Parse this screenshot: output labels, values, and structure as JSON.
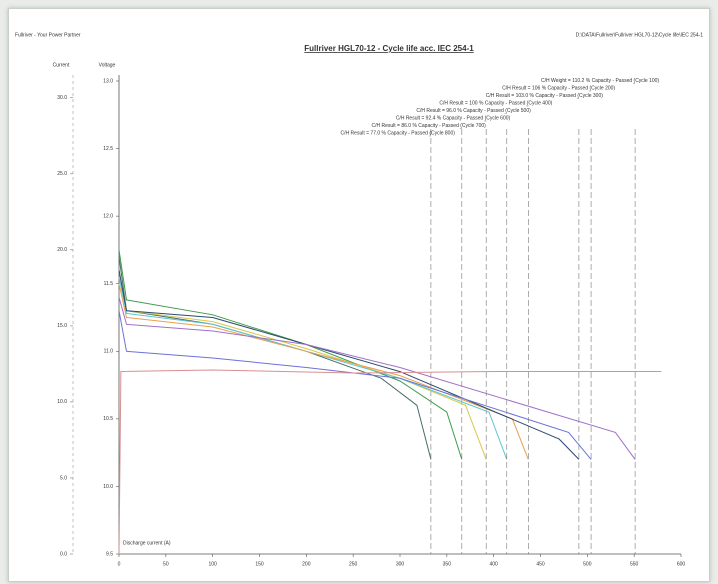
{
  "header": {
    "left": "Fullriver - Your Power Partner",
    "right": "D:\\DATA\\Fullriver\\Fullriver HGL70-12\\Cycle life\\IEC 254-1"
  },
  "chart_data": {
    "type": "line",
    "title": "Fullriver HGL70-12 - Cycle life acc. IEC 254-1",
    "ylabel": "Voltage",
    "y2label": "Current",
    "current_label": "Discharge current (A)",
    "xlim": [
      0,
      600
    ],
    "xticks": [
      0,
      50,
      100,
      150,
      200,
      250,
      300,
      350,
      400,
      450,
      500,
      550,
      600
    ],
    "ylim": [
      9.5,
      13.0
    ],
    "yticks": [
      {
        "value": 9.5,
        "label": "9.5"
      },
      {
        "value": 10.0,
        "label": "10.0"
      },
      {
        "value": 10.5,
        "label": "10.5"
      },
      {
        "value": 11.0,
        "label": "11.0"
      },
      {
        "value": 11.5,
        "label": "11.5"
      },
      {
        "value": 12.0,
        "label": "12.0"
      },
      {
        "value": 12.5,
        "label": "12.5"
      },
      {
        "value": 13.0,
        "label": "13.0"
      }
    ],
    "y2lim": [
      0,
      31.1
    ],
    "y2ticks": [
      {
        "value": 0,
        "label": "0.0"
      },
      {
        "value": 5,
        "label": "5.0"
      },
      {
        "value": 10,
        "label": "10.0"
      },
      {
        "value": 15,
        "label": "15.0"
      },
      {
        "value": 20,
        "label": "20.0"
      },
      {
        "value": 25,
        "label": "25.0"
      },
      {
        "value": 30,
        "label": "30.0"
      }
    ],
    "series": [
      {
        "name": "C/H Result = 77.0 % Capacity - Passed (Cycle 800)",
        "color": "#4a6a6a",
        "x": [
          0,
          8,
          100,
          200,
          280,
          318,
          333
        ],
        "values": [
          11.7,
          11.3,
          11.2,
          11.0,
          10.8,
          10.6,
          10.2
        ]
      },
      {
        "name": "C/H Result = 86.0 % Capacity - Passed (Cycle 700)",
        "color": "#3f9a4a",
        "x": [
          0,
          8,
          100,
          200,
          300,
          350,
          366
        ],
        "values": [
          11.75,
          11.38,
          11.27,
          11.05,
          10.78,
          10.55,
          10.2
        ]
      },
      {
        "name": "C/H Result = 92.4 % Capacity - Passed (Cycle 600)",
        "color": "#d8c84a",
        "x": [
          0,
          8,
          100,
          200,
          300,
          370,
          392
        ],
        "values": [
          11.6,
          11.3,
          11.22,
          11.02,
          10.8,
          10.6,
          10.2
        ]
      },
      {
        "name": "C/H Result = 96.0 % Capacity - Passed (Cycle 500)",
        "color": "#5ac8d0",
        "x": [
          0,
          8,
          100,
          200,
          300,
          395,
          414
        ],
        "values": [
          11.55,
          11.28,
          11.2,
          11.0,
          10.8,
          10.55,
          10.2
        ]
      },
      {
        "name": "C/H Result = 100 % Capacity - Passed (Cycle 400)",
        "color": "#e8a050",
        "x": [
          0,
          8,
          100,
          200,
          300,
          420,
          437
        ],
        "values": [
          11.5,
          11.25,
          11.18,
          11.0,
          10.82,
          10.5,
          10.2
        ]
      },
      {
        "name": "C/H Result = 103.0 % Capacity - Passed (Cycle 300)",
        "color": "#2a4a70",
        "x": [
          0,
          8,
          100,
          200,
          300,
          470,
          491
        ],
        "values": [
          11.6,
          11.3,
          11.25,
          11.05,
          10.85,
          10.35,
          10.2
        ]
      },
      {
        "name": "C/H Result = 106 % Capacity - Passed (Cycle 200)",
        "color": "#6a72d8",
        "x": [
          0,
          8,
          100,
          200,
          300,
          480,
          504
        ],
        "values": [
          11.3,
          11.0,
          10.95,
          10.88,
          10.8,
          10.4,
          10.2
        ]
      },
      {
        "name": "C/H Weight = 110.2 % Capacity - Passed (Cycle 100)",
        "color": "#a070c8",
        "x": [
          0,
          8,
          100,
          200,
          300,
          530,
          551
        ],
        "values": [
          11.4,
          11.2,
          11.15,
          11.05,
          10.88,
          10.4,
          10.2
        ]
      },
      {
        "name": "Current",
        "color": "#d89090",
        "axis": "y2",
        "x": [
          0,
          2,
          100,
          250,
          400,
          579
        ],
        "values": [
          0,
          12.0,
          12.1,
          11.9,
          12.0,
          12.0
        ]
      }
    ]
  }
}
